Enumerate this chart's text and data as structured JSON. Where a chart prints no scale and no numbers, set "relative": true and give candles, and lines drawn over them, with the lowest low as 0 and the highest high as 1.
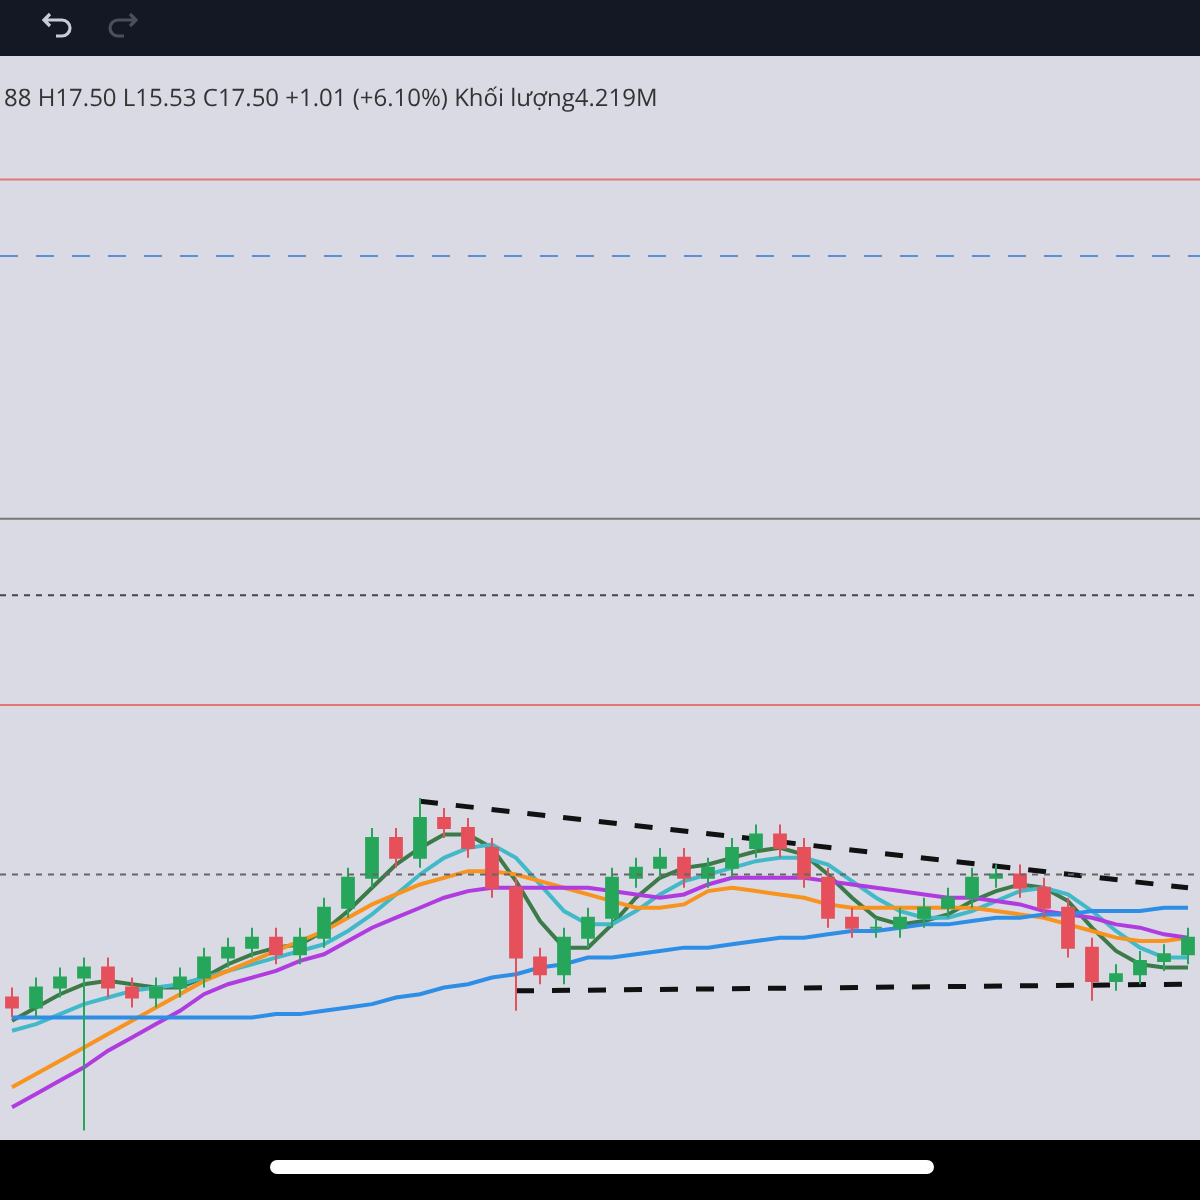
{
  "chart_data": {
    "type": "candlestick",
    "relative": true,
    "annotations": [
      "88 H17.50 L15.53 C17.50 +1.01 (+6.10%) Khối lượng4.219M"
    ],
    "categories": [
      null,
      null,
      null,
      null,
      null,
      null,
      null,
      null,
      null,
      null,
      null,
      null,
      null,
      null,
      null,
      null,
      null,
      null,
      null,
      null,
      null,
      null,
      null,
      null,
      null,
      null,
      null,
      null,
      null,
      null,
      null,
      null,
      null,
      null,
      null,
      null,
      null,
      null,
      null,
      null,
      null,
      null,
      null,
      null,
      null,
      null,
      null,
      null,
      null,
      null
    ],
    "ohlc": [
      [
        0.4,
        0.43,
        0.34,
        0.37
      ],
      [
        0.37,
        0.46,
        0.34,
        0.43
      ],
      [
        0.43,
        0.49,
        0.4,
        0.46
      ],
      [
        0.46,
        0.52,
        0.0,
        0.49
      ],
      [
        0.49,
        0.52,
        0.4,
        0.43
      ],
      [
        0.43,
        0.46,
        0.37,
        0.4
      ],
      [
        0.4,
        0.46,
        0.37,
        0.43
      ],
      [
        0.43,
        0.49,
        0.4,
        0.46
      ],
      [
        0.46,
        0.55,
        0.43,
        0.52
      ],
      [
        0.52,
        0.58,
        0.49,
        0.55
      ],
      [
        0.55,
        0.61,
        0.52,
        0.58
      ],
      [
        0.58,
        0.61,
        0.5,
        0.53
      ],
      [
        0.53,
        0.61,
        0.5,
        0.58
      ],
      [
        0.58,
        0.7,
        0.55,
        0.67
      ],
      [
        0.67,
        0.79,
        0.64,
        0.76
      ],
      [
        0.76,
        0.91,
        0.73,
        0.88
      ],
      [
        0.88,
        0.91,
        0.79,
        0.82
      ],
      [
        0.82,
        1.0,
        0.79,
        0.94
      ],
      [
        0.94,
        0.97,
        0.88,
        0.91
      ],
      [
        0.91,
        0.94,
        0.82,
        0.85
      ],
      [
        0.85,
        0.88,
        0.7,
        0.73
      ],
      [
        0.73,
        0.76,
        0.36,
        0.52
      ],
      [
        0.52,
        0.55,
        0.44,
        0.47
      ],
      [
        0.47,
        0.61,
        0.44,
        0.58
      ],
      [
        0.58,
        0.67,
        0.55,
        0.64
      ],
      [
        0.64,
        0.79,
        0.61,
        0.76
      ],
      [
        0.76,
        0.82,
        0.73,
        0.79
      ],
      [
        0.79,
        0.85,
        0.76,
        0.82
      ],
      [
        0.82,
        0.85,
        0.73,
        0.76
      ],
      [
        0.76,
        0.82,
        0.73,
        0.79
      ],
      [
        0.79,
        0.88,
        0.76,
        0.85
      ],
      [
        0.85,
        0.92,
        0.82,
        0.89
      ],
      [
        0.89,
        0.92,
        0.82,
        0.85
      ],
      [
        0.85,
        0.88,
        0.73,
        0.76
      ],
      [
        0.76,
        0.79,
        0.61,
        0.64
      ],
      [
        0.64,
        0.67,
        0.58,
        0.61
      ],
      [
        0.61,
        0.64,
        0.58,
        0.61
      ],
      [
        0.61,
        0.67,
        0.58,
        0.64
      ],
      [
        0.64,
        0.7,
        0.61,
        0.67
      ],
      [
        0.67,
        0.73,
        0.64,
        0.7
      ],
      [
        0.7,
        0.79,
        0.67,
        0.76
      ],
      [
        0.76,
        0.8,
        0.73,
        0.77
      ],
      [
        0.77,
        0.8,
        0.7,
        0.73
      ],
      [
        0.73,
        0.76,
        0.64,
        0.67
      ],
      [
        0.67,
        0.7,
        0.52,
        0.55
      ],
      [
        0.55,
        0.58,
        0.39,
        0.45
      ],
      [
        0.45,
        0.5,
        0.42,
        0.47
      ],
      [
        0.47,
        0.54,
        0.44,
        0.51
      ],
      [
        0.51,
        0.56,
        0.48,
        0.53
      ],
      [
        0.53,
        0.61,
        0.5,
        0.58
      ]
    ],
    "colors": [
      "#e5505a",
      "#26a65b",
      "#26a65b",
      "#26a65b",
      "#e5505a",
      "#e5505a",
      "#26a65b",
      "#26a65b",
      "#26a65b",
      "#26a65b",
      "#26a65b",
      "#e5505a",
      "#26a65b",
      "#26a65b",
      "#26a65b",
      "#26a65b",
      "#e5505a",
      "#26a65b",
      "#e5505a",
      "#e5505a",
      "#e5505a",
      "#e5505a",
      "#e5505a",
      "#26a65b",
      "#26a65b",
      "#26a65b",
      "#26a65b",
      "#26a65b",
      "#e5505a",
      "#26a65b",
      "#26a65b",
      "#26a65b",
      "#e5505a",
      "#e5505a",
      "#e5505a",
      "#e5505a",
      "#26a65b",
      "#26a65b",
      "#26a65b",
      "#26a65b",
      "#26a65b",
      "#26a65b",
      "#e5505a",
      "#e5505a",
      "#e5505a",
      "#e5505a",
      "#26a65b",
      "#26a65b",
      "#26a65b",
      "#26a65b"
    ],
    "series": [
      {
        "type": "line",
        "color": "#3d7a4a",
        "values": [
          0.33,
          0.37,
          0.41,
          0.44,
          0.45,
          0.44,
          0.43,
          0.43,
          0.46,
          0.5,
          0.53,
          0.55,
          0.56,
          0.6,
          0.66,
          0.73,
          0.8,
          0.85,
          0.89,
          0.89,
          0.85,
          0.75,
          0.63,
          0.55,
          0.55,
          0.62,
          0.7,
          0.76,
          0.79,
          0.8,
          0.82,
          0.84,
          0.85,
          0.83,
          0.77,
          0.7,
          0.64,
          0.62,
          0.63,
          0.65,
          0.69,
          0.72,
          0.74,
          0.73,
          0.69,
          0.61,
          0.54,
          0.5,
          0.49,
          0.49
        ]
      },
      {
        "type": "line",
        "color": "#41b9c8",
        "values": [
          0.3,
          0.32,
          0.35,
          0.38,
          0.4,
          0.42,
          0.43,
          0.44,
          0.46,
          0.48,
          0.5,
          0.52,
          0.54,
          0.56,
          0.6,
          0.65,
          0.71,
          0.77,
          0.82,
          0.85,
          0.86,
          0.82,
          0.74,
          0.66,
          0.62,
          0.62,
          0.66,
          0.71,
          0.75,
          0.77,
          0.79,
          0.81,
          0.82,
          0.82,
          0.8,
          0.75,
          0.7,
          0.66,
          0.64,
          0.64,
          0.66,
          0.69,
          0.72,
          0.73,
          0.71,
          0.66,
          0.6,
          0.55,
          0.52,
          0.52
        ]
      },
      {
        "type": "line",
        "color": "#f7931e",
        "values": [
          0.13,
          0.17,
          0.21,
          0.25,
          0.29,
          0.33,
          0.37,
          0.41,
          0.45,
          0.48,
          0.51,
          0.54,
          0.57,
          0.6,
          0.64,
          0.68,
          0.71,
          0.74,
          0.76,
          0.78,
          0.78,
          0.77,
          0.75,
          0.73,
          0.71,
          0.69,
          0.67,
          0.67,
          0.68,
          0.72,
          0.73,
          0.72,
          0.71,
          0.7,
          0.68,
          0.67,
          0.67,
          0.67,
          0.67,
          0.67,
          0.67,
          0.66,
          0.65,
          0.64,
          0.62,
          0.6,
          0.58,
          0.57,
          0.57,
          0.58
        ]
      },
      {
        "type": "line",
        "color": "#b03ce0",
        "values": [
          0.07,
          0.11,
          0.15,
          0.19,
          0.24,
          0.28,
          0.32,
          0.36,
          0.41,
          0.44,
          0.46,
          0.48,
          0.51,
          0.53,
          0.57,
          0.61,
          0.64,
          0.67,
          0.7,
          0.72,
          0.73,
          0.73,
          0.73,
          0.73,
          0.73,
          0.72,
          0.71,
          0.7,
          0.71,
          0.74,
          0.76,
          0.76,
          0.76,
          0.76,
          0.75,
          0.74,
          0.73,
          0.72,
          0.71,
          0.7,
          0.7,
          0.69,
          0.68,
          0.66,
          0.65,
          0.64,
          0.62,
          0.61,
          0.59,
          0.58
        ]
      },
      {
        "type": "line",
        "color": "#2e8ee6",
        "values": [
          0.34,
          0.34,
          0.34,
          0.34,
          0.34,
          0.34,
          0.34,
          0.34,
          0.34,
          0.34,
          0.34,
          0.35,
          0.35,
          0.36,
          0.37,
          0.38,
          0.4,
          0.41,
          0.43,
          0.44,
          0.46,
          0.47,
          0.49,
          0.5,
          0.52,
          0.52,
          0.53,
          0.54,
          0.55,
          0.55,
          0.56,
          0.57,
          0.58,
          0.58,
          0.59,
          0.6,
          0.6,
          0.61,
          0.62,
          0.62,
          0.63,
          0.64,
          0.64,
          0.65,
          0.65,
          0.66,
          0.66,
          0.66,
          0.67,
          0.67
        ]
      },
      {
        "type": "line",
        "color": "#111111",
        "line_style": "dashed",
        "values": [
          null,
          null,
          null,
          null,
          null,
          null,
          null,
          null,
          null,
          null,
          null,
          null,
          null,
          null,
          null,
          null,
          null,
          0.99,
          null,
          null,
          null,
          null,
          null,
          null,
          null,
          null,
          null,
          null,
          null,
          null,
          null,
          null,
          null,
          null,
          null,
          null,
          null,
          null,
          null,
          null,
          null,
          null,
          null,
          null,
          null,
          null,
          null,
          null,
          null,
          0.73
        ]
      },
      {
        "type": "line",
        "color": "#111111",
        "line_style": "dashed",
        "values": [
          null,
          null,
          null,
          null,
          null,
          null,
          null,
          null,
          null,
          null,
          null,
          null,
          null,
          null,
          null,
          null,
          null,
          null,
          null,
          null,
          null,
          0.42,
          null,
          null,
          null,
          null,
          null,
          null,
          null,
          null,
          null,
          null,
          null,
          null,
          null,
          null,
          null,
          null,
          null,
          null,
          null,
          null,
          null,
          null,
          null,
          null,
          null,
          null,
          null,
          0.44
        ]
      }
    ],
    "ref_lines": [
      {
        "axis": "y",
        "value": 2.86,
        "color": "#e57373",
        "line_style": "solid"
      },
      {
        "axis": "y",
        "value": 2.63,
        "color": "#5b8fd9",
        "line_style": "dashed"
      },
      {
        "axis": "y",
        "value": 1.84,
        "color": "#777777",
        "line_style": "solid"
      },
      {
        "axis": "y",
        "value": 1.61,
        "color": "#444444",
        "line_style": "dotted"
      },
      {
        "axis": "y",
        "value": 1.28,
        "color": "#e57373",
        "line_style": "solid"
      },
      {
        "axis": "y",
        "value": 0.77,
        "color": "#666666",
        "line_style": "dotted"
      }
    ]
  }
}
